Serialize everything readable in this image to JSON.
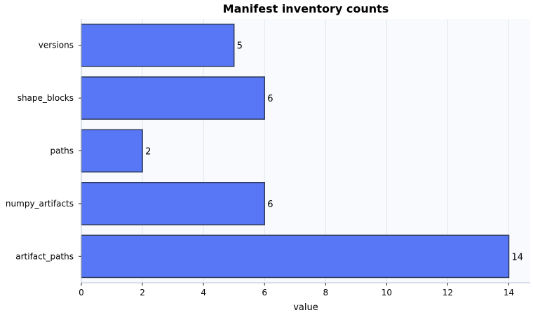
{
  "chart_data": {
    "type": "bar",
    "orientation": "horizontal",
    "title": "Manifest inventory counts",
    "xlabel": "value",
    "ylabel": "",
    "categories": [
      "versions",
      "shape_blocks",
      "paths",
      "numpy_artifacts",
      "artifact_paths"
    ],
    "values": [
      5,
      6,
      2,
      6,
      14
    ],
    "xlim": [
      0,
      14.7
    ],
    "xticks": [
      0,
      2,
      4,
      6,
      8,
      10,
      12,
      14
    ],
    "grid": true,
    "bar_color": "#5877f6",
    "bar_edge_color": "#2e3a59",
    "plot_background": "#f8fafd"
  }
}
